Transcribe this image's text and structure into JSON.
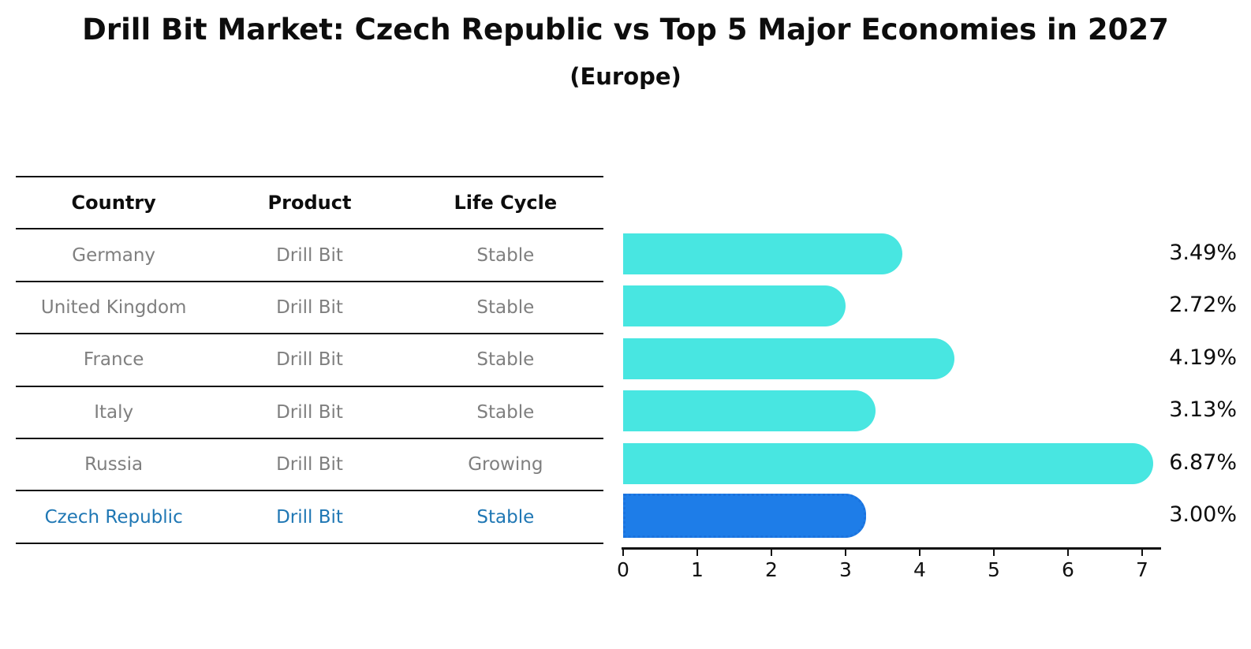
{
  "title": "Drill Bit Market: Czech Republic vs Top 5 Major Economies in 2027",
  "subtitle": "(Europe)",
  "table": {
    "headers": [
      "Country",
      "Product",
      "Life Cycle"
    ],
    "rows": [
      {
        "country": "Germany",
        "product": "Drill Bit",
        "life_cycle": "Stable",
        "highlight": false
      },
      {
        "country": "United Kingdom",
        "product": "Drill Bit",
        "life_cycle": "Stable",
        "highlight": false
      },
      {
        "country": "France",
        "product": "Drill Bit",
        "life_cycle": "Stable",
        "highlight": false
      },
      {
        "country": "Italy",
        "product": "Drill Bit",
        "life_cycle": "Stable",
        "highlight": false
      },
      {
        "country": "Russia",
        "product": "Drill Bit",
        "life_cycle": "Growing",
        "highlight": false
      },
      {
        "country": "Czech Republic",
        "product": "Drill Bit",
        "life_cycle": "Stable",
        "highlight": true
      }
    ]
  },
  "chart_data": {
    "type": "bar",
    "orientation": "horizontal",
    "title": "Drill Bit Market: Czech Republic vs Top 5 Major Economies in 2027",
    "subtitle": "(Europe)",
    "categories": [
      "Germany",
      "United Kingdom",
      "France",
      "Italy",
      "Russia",
      "Czech Republic"
    ],
    "values": [
      3.49,
      2.72,
      4.19,
      3.13,
      6.87,
      3.0
    ],
    "value_labels": [
      "3.49%",
      "2.72%",
      "4.19%",
      "3.13%",
      "6.87%",
      "3.00%"
    ],
    "xlim": [
      0,
      7
    ],
    "xticks": [
      "0",
      "1",
      "2",
      "3",
      "4",
      "5",
      "6",
      "7"
    ],
    "grid": false,
    "legend": false,
    "highlight_index": 5,
    "bar_color": "#48E6E1",
    "highlight_bar_color": "#1E7DE8",
    "highlight_border_color": "#1B72DD",
    "highlight_text_color": "#1F77B4",
    "row_text_color": "#7F7F7F",
    "axis_color": "#111111",
    "label_color": "#0D0D0D"
  }
}
